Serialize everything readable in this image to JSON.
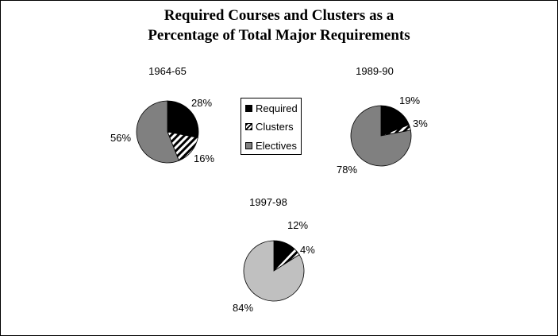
{
  "header": {
    "title_line1": "Required Courses and Clusters as a",
    "title_line2": "Percentage of Total Major Requirements"
  },
  "colors": {
    "required": "#000000",
    "clusters_stripe": "#000000",
    "electives_1964": "#808080",
    "electives_1989": "#808080",
    "electives_1997": "#c0c0c0"
  },
  "chart_data": [
    {
      "type": "pie",
      "title": "1964-65",
      "categories": [
        "Required",
        "Clusters",
        "Electives"
      ],
      "values": [
        28,
        16,
        56
      ],
      "labels": [
        "28%",
        "16%",
        "56%"
      ]
    },
    {
      "type": "pie",
      "title": "1989-90",
      "categories": [
        "Required",
        "Clusters",
        "Electives"
      ],
      "values": [
        19,
        3,
        78
      ],
      "labels": [
        "19%",
        "3%",
        "78%"
      ]
    },
    {
      "type": "pie",
      "title": "1997-98",
      "categories": [
        "Required",
        "Clusters",
        "Electives"
      ],
      "values": [
        12,
        4,
        84
      ],
      "labels": [
        "12%",
        "4%",
        "84%"
      ]
    }
  ],
  "legend": {
    "items": [
      {
        "label": "Required",
        "pattern": "solid-black"
      },
      {
        "label": "Clusters",
        "pattern": "diagonal-stripes"
      },
      {
        "label": "Electives",
        "pattern": "solid-gray"
      }
    ]
  }
}
